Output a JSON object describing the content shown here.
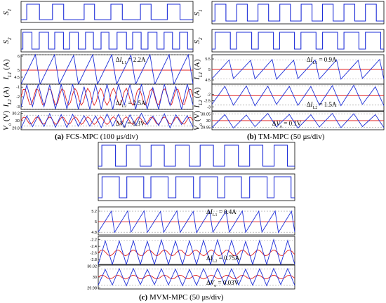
{
  "colors": {
    "blue": "#1f2fd8",
    "red": "#e02020",
    "dash": "#9a9a9a",
    "axis": "#000000"
  },
  "captions": {
    "a": {
      "letter": "(a)",
      "text": "FCS-MPC (100 μs/div)"
    },
    "b": {
      "letter": "(b)",
      "text": "TM-MPC (50 μs/div)"
    },
    "c": {
      "letter": "(c)",
      "text": "MVM-MPC (50 μs/div)"
    }
  },
  "chart_data": [
    {
      "type": "line",
      "name": "FCS-MPC",
      "caption": "(a) FCS-MPC (100 μs/div)",
      "panels": [
        {
          "ylabel": "S1",
          "kind": "switch",
          "ylim": [
            0,
            1
          ],
          "periods": 6,
          "duty": 0.4,
          "jitter": 0.25,
          "yticks": []
        },
        {
          "ylabel": "S2",
          "kind": "switch",
          "ylim": [
            0,
            1
          ],
          "periods": 11,
          "duty": 0.55,
          "jitter": 0.2,
          "yticks": []
        },
        {
          "ylabel": "IL1 (A)",
          "kind": "ripple",
          "mean": 5.0,
          "ripple": 2.2,
          "periods": 9,
          "rise": 0.75,
          "jitter": 0.05,
          "ylim": [
            4.0,
            6.1
          ],
          "yticks": [
            "6",
            "5",
            "4.5"
          ],
          "annotation": "ΔI_L1 = 2.2A"
        },
        {
          "ylabel": "IL2 (A)",
          "kind": "ripple",
          "mean": -2.0,
          "ripple": 2.5,
          "periods": 15,
          "rise": 0.5,
          "jitter": 0.35,
          "ylim": [
            -3.3,
            -0.7
          ],
          "yticks": [
            "-1",
            "-2",
            "-3"
          ],
          "annotation": "ΔI_L2 = 2.5A"
        },
        {
          "ylabel": "Vo (V)",
          "kind": "ripple",
          "mean": 30.0,
          "ripple": 0.3,
          "periods": 15,
          "rise": 0.5,
          "jitter": 0.35,
          "ylim": [
            29.75,
            30.25
          ],
          "yticks": [
            "30.2",
            "30",
            "29.8"
          ],
          "annotation": "ΔV_o = 0.3V"
        }
      ]
    },
    {
      "type": "line",
      "name": "TM-MPC",
      "caption": "(b) TM-MPC (50 μs/div)",
      "panels": [
        {
          "ylabel": "S1",
          "kind": "switch",
          "ylim": [
            0,
            1
          ],
          "periods": 8,
          "duty": 0.5,
          "jitter": 0.05,
          "yticks": []
        },
        {
          "ylabel": "S2",
          "kind": "switch",
          "ylim": [
            0,
            1
          ],
          "periods": 8,
          "duty": 0.7,
          "jitter": 0.05,
          "yticks": []
        },
        {
          "ylabel": "IL1 (A)",
          "kind": "ripple",
          "mean": 5.0,
          "ripple": 0.9,
          "periods": 8,
          "rise": 0.8,
          "jitter": 0.05,
          "ylim": [
            4.3,
            5.7
          ],
          "yticks": [
            "5.5",
            "5",
            "4.5"
          ],
          "annotation": "ΔI_L1 = 0.9A"
        },
        {
          "ylabel": "IL2 (A)",
          "kind": "ripple",
          "mean": -2.1,
          "ripple": 1.5,
          "periods": 8,
          "rise": 0.6,
          "jitter": 0.1,
          "ylim": [
            -3.3,
            -1.2
          ],
          "yticks": [
            "-2",
            "-2.5",
            "-3"
          ],
          "annotation": "ΔI_L2 = 1.5A"
        },
        {
          "ylabel": "Vo (V)",
          "kind": "ripple",
          "mean": 30.0,
          "ripple": 0.1,
          "periods": 8,
          "rise": 0.6,
          "jitter": 0.15,
          "ylim": [
            29.93,
            30.07
          ],
          "yticks": [
            "30.05",
            "30",
            "29.95"
          ],
          "annotation": "ΔV_o = 0.1V"
        }
      ]
    },
    {
      "type": "line",
      "name": "MVM-MPC",
      "caption": "(c) MVM-MPC (50 μs/div)",
      "panels": [
        {
          "ylabel": "",
          "kind": "switch",
          "ylim": [
            0,
            1
          ],
          "periods": 8,
          "duty": 0.55,
          "jitter": 0.05,
          "yticks": []
        },
        {
          "ylabel": "",
          "kind": "switch",
          "ylim": [
            0,
            1
          ],
          "periods": 8,
          "duty": 0.7,
          "jitter": 0.05,
          "yticks": []
        },
        {
          "ylabel": "",
          "kind": "ripple",
          "mean": 5.0,
          "ripple": 0.4,
          "periods": 12,
          "rise": 0.8,
          "jitter": 0.03,
          "ylim": [
            4.75,
            5.28
          ],
          "yticks": [
            "5.2",
            "5",
            "4.8"
          ],
          "annotation": "ΔI_L1 = 0.4A"
        },
        {
          "ylabel": "",
          "kind": "ripple",
          "mean": -2.6,
          "ripple": 0.75,
          "periods": 14,
          "rise": 0.5,
          "jitter": 0.08,
          "ylim": [
            -2.95,
            -2.1
          ],
          "yticks": [
            "-2.2",
            "-2.4",
            "-2.6",
            "-2.8"
          ],
          "annotation": "ΔI_L2 = 0.75A"
        },
        {
          "ylabel": "",
          "kind": "ripple",
          "mean": 30.0,
          "ripple": 0.03,
          "periods": 14,
          "rise": 0.5,
          "jitter": 0.08,
          "ylim": [
            29.978,
            30.022
          ],
          "yticks": [
            "30.02",
            "30",
            "29.98"
          ],
          "annotation": "ΔV_o = 0.03V"
        }
      ]
    }
  ]
}
